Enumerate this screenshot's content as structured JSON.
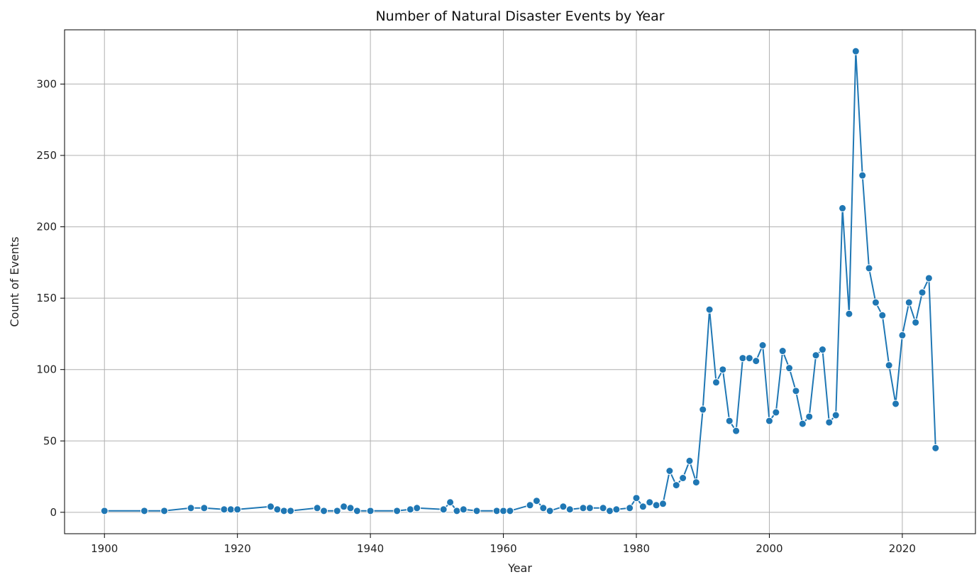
{
  "chart_data": {
    "type": "line",
    "title": "Number of Natural Disaster Events by Year",
    "xlabel": "Year",
    "ylabel": "Count of Events",
    "xlim": [
      1894,
      2031
    ],
    "ylim": [
      -15,
      338
    ],
    "x_ticks": [
      1900,
      1920,
      1940,
      1960,
      1980,
      2000,
      2020
    ],
    "y_ticks": [
      0,
      50,
      100,
      150,
      200,
      250,
      300
    ],
    "grid": true,
    "line_color": "#1f77b4",
    "series": [
      {
        "x": [
          1900,
          1906,
          1909,
          1913,
          1915,
          1918,
          1919,
          1920,
          1925,
          1926,
          1927,
          1928,
          1932,
          1933,
          1935,
          1936,
          1937,
          1938,
          1940,
          1944,
          1946,
          1947,
          1951,
          1952,
          1953,
          1954,
          1956,
          1959,
          1960,
          1961,
          1964,
          1965,
          1966,
          1967,
          1969,
          1970,
          1972,
          1973,
          1975,
          1976,
          1977,
          1979,
          1980,
          1981,
          1982,
          1983,
          1984,
          1985,
          1986,
          1987,
          1988,
          1989,
          1990,
          1991,
          1992,
          1993,
          1994,
          1995,
          1996,
          1997,
          1998,
          1999,
          2000,
          2001,
          2002,
          2003,
          2004,
          2005,
          2006,
          2007,
          2008,
          2009,
          2010,
          2011,
          2012,
          2013,
          2014,
          2015,
          2016,
          2017,
          2018,
          2019,
          2020,
          2021,
          2022,
          2023,
          2024,
          2025
        ],
        "values": [
          1,
          1,
          1,
          3,
          3,
          2,
          2,
          2,
          4,
          2,
          1,
          1,
          3,
          1,
          1,
          4,
          3,
          1,
          1,
          1,
          2,
          3,
          2,
          7,
          1,
          2,
          1,
          1,
          1,
          1,
          5,
          8,
          3,
          1,
          4,
          2,
          3,
          3,
          3,
          1,
          2,
          3,
          10,
          4,
          7,
          5,
          6,
          29,
          19,
          24,
          36,
          21,
          72,
          142,
          91,
          100,
          64,
          57,
          108,
          108,
          106,
          117,
          64,
          70,
          113,
          101,
          85,
          62,
          67,
          110,
          114,
          63,
          68,
          213,
          139,
          323,
          236,
          171,
          147,
          138,
          103,
          76,
          124,
          147,
          133,
          154,
          164,
          45
        ]
      }
    ]
  }
}
